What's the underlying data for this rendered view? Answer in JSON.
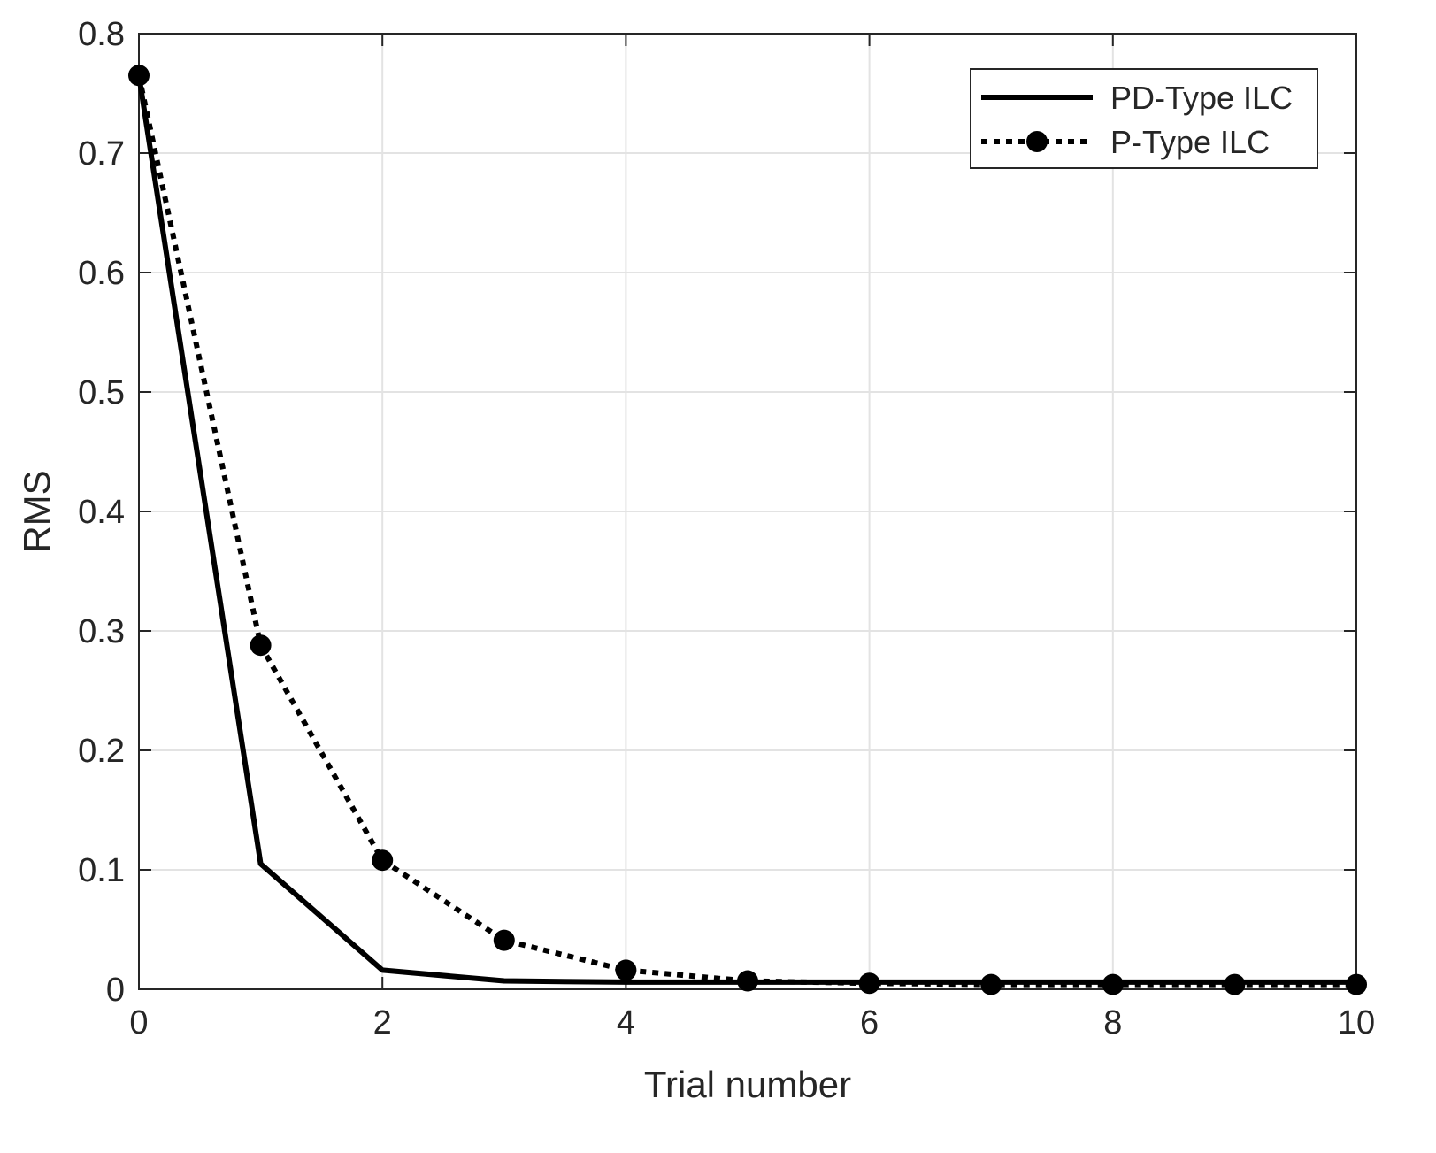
{
  "chart_data": {
    "type": "line",
    "xlabel": "Trial number",
    "ylabel": "RMS",
    "xlim": [
      0,
      10
    ],
    "ylim": [
      0,
      0.8
    ],
    "xticks": [
      0,
      2,
      4,
      6,
      8,
      10
    ],
    "yticks": [
      0,
      0.1,
      0.2,
      0.3,
      0.4,
      0.5,
      0.6,
      0.7,
      0.8
    ],
    "xtick_labels": [
      "0",
      "2",
      "4",
      "6",
      "8",
      "10"
    ],
    "ytick_labels": [
      "0",
      "0.1",
      "0.2",
      "0.3",
      "0.4",
      "0.5",
      "0.6",
      "0.7",
      "0.8"
    ],
    "grid": true,
    "legend_position": "top-right",
    "x": [
      0,
      1,
      2,
      3,
      4,
      5,
      6,
      7,
      8,
      9,
      10
    ],
    "series": [
      {
        "name": "PD-Type ILC",
        "style": "solid",
        "marker": "none",
        "color": "#000000",
        "values": [
          0.765,
          0.105,
          0.016,
          0.007,
          0.006,
          0.006,
          0.006,
          0.006,
          0.006,
          0.006,
          0.006
        ]
      },
      {
        "name": "P-Type ILC",
        "style": "dotted",
        "marker": "circle",
        "color": "#000000",
        "values": [
          0.765,
          0.288,
          0.108,
          0.041,
          0.016,
          0.007,
          0.005,
          0.004,
          0.004,
          0.004,
          0.004
        ]
      }
    ]
  },
  "colors": {
    "grid": "#e3e3e3",
    "axes": "#262626",
    "series": "#000000"
  }
}
